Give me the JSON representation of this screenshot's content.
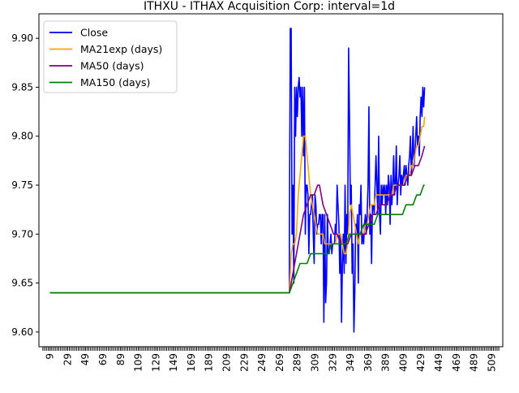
{
  "chart_data": {
    "type": "line",
    "title": "ITHXU - ITHAX Acquisition Corp: interval=1d",
    "xlabel": "",
    "ylabel": "",
    "xlim": [
      -3.5,
      521.5
    ],
    "ylim": [
      9.585,
      9.925
    ],
    "x_ticks": [
      9,
      29,
      49,
      69,
      89,
      109,
      129,
      149,
      169,
      189,
      209,
      229,
      249,
      269,
      289,
      309,
      329,
      349,
      369,
      389,
      409,
      429,
      449,
      469,
      489,
      509
    ],
    "y_ticks": [
      "9.60",
      "9.65",
      "9.70",
      "9.75",
      "9.80",
      "9.85",
      "9.90"
    ],
    "grid": false,
    "legend_position": "top-left",
    "series": [
      {
        "name": "Close",
        "color": "#0000ff",
        "points": [
          [
            9,
            9.64
          ],
          [
            280,
            9.64
          ],
          [
            280,
            9.7
          ],
          [
            281,
            9.91
          ],
          [
            282,
            9.91
          ],
          [
            283,
            9.7
          ],
          [
            284,
            9.75
          ],
          [
            285,
            9.65
          ],
          [
            286,
            9.85
          ],
          [
            287,
            9.8
          ],
          [
            288,
            9.85
          ],
          [
            289,
            9.82
          ],
          [
            290,
            9.85
          ],
          [
            291,
            9.86
          ],
          [
            292,
            9.84
          ],
          [
            293,
            9.85
          ],
          [
            294,
            9.8
          ],
          [
            295,
            9.85
          ],
          [
            296,
            9.78
          ],
          [
            297,
            9.85
          ],
          [
            298,
            9.7
          ],
          [
            299,
            9.75
          ],
          [
            300,
            9.75
          ],
          [
            301,
            9.74
          ],
          [
            302,
            9.68
          ],
          [
            303,
            9.72
          ],
          [
            304,
            9.72
          ],
          [
            305,
            9.73
          ],
          [
            306,
            9.74
          ],
          [
            307,
            9.7
          ],
          [
            308,
            9.67
          ],
          [
            309,
            9.74
          ],
          [
            310,
            9.73
          ],
          [
            311,
            9.7
          ],
          [
            312,
            9.71
          ],
          [
            313,
            9.71
          ],
          [
            314,
            9.72
          ],
          [
            315,
            9.72
          ],
          [
            316,
            9.69
          ],
          [
            317,
            9.72
          ],
          [
            318,
            9.72
          ],
          [
            319,
            9.61
          ],
          [
            320,
            9.72
          ],
          [
            321,
            9.63
          ],
          [
            322,
            9.65
          ],
          [
            323,
            9.72
          ],
          [
            324,
            9.68
          ],
          [
            325,
            9.68
          ],
          [
            326,
            9.69
          ],
          [
            327,
            9.7
          ],
          [
            328,
            9.68
          ],
          [
            329,
            9.69
          ],
          [
            330,
            9.69
          ],
          [
            331,
            9.69
          ],
          [
            332,
            9.71
          ],
          [
            333,
            9.7
          ],
          [
            334,
            9.75
          ],
          [
            335,
            9.73
          ],
          [
            336,
            9.71
          ],
          [
            337,
            9.66
          ],
          [
            338,
            9.7
          ],
          [
            339,
            9.61
          ],
          [
            340,
            9.67
          ],
          [
            341,
            9.7
          ],
          [
            342,
            9.66
          ],
          [
            343,
            9.75
          ],
          [
            344,
            9.67
          ],
          [
            345,
            9.72
          ],
          [
            346,
            9.7
          ],
          [
            347,
            9.89
          ],
          [
            348,
            9.82
          ],
          [
            349,
            9.73
          ],
          [
            350,
            9.75
          ],
          [
            351,
            9.66
          ],
          [
            352,
            9.69
          ],
          [
            353,
            9.6
          ],
          [
            354,
            9.64
          ],
          [
            355,
            9.71
          ],
          [
            356,
            9.7
          ],
          [
            357,
            9.72
          ],
          [
            358,
            9.65
          ],
          [
            359,
            9.73
          ],
          [
            360,
            9.72
          ],
          [
            361,
            9.75
          ],
          [
            362,
            9.69
          ],
          [
            363,
            9.7
          ],
          [
            364,
            9.69
          ],
          [
            365,
            9.71
          ],
          [
            366,
            9.72
          ],
          [
            367,
            9.7
          ],
          [
            368,
            9.72
          ],
          [
            369,
            9.75
          ],
          [
            370,
            9.83
          ],
          [
            371,
            9.7
          ],
          [
            372,
            9.72
          ],
          [
            373,
            9.67
          ],
          [
            374,
            9.73
          ],
          [
            375,
            9.73
          ],
          [
            376,
            9.72
          ],
          [
            377,
            9.75
          ],
          [
            378,
            9.78
          ],
          [
            379,
            9.75
          ],
          [
            380,
            9.72
          ],
          [
            381,
            9.8
          ],
          [
            382,
            9.72
          ],
          [
            383,
            9.7
          ],
          [
            384,
            9.75
          ],
          [
            385,
            9.73
          ],
          [
            386,
            9.75
          ],
          [
            387,
            9.74
          ],
          [
            388,
            9.75
          ],
          [
            389,
            9.72
          ],
          [
            390,
            9.75
          ],
          [
            391,
            9.73
          ],
          [
            392,
            9.76
          ],
          [
            393,
            9.75
          ],
          [
            394,
            9.71
          ],
          [
            395,
            9.76
          ],
          [
            396,
            9.73
          ],
          [
            397,
            9.75
          ],
          [
            398,
            9.78
          ],
          [
            399,
            9.74
          ],
          [
            400,
            9.75
          ],
          [
            401,
            9.79
          ],
          [
            402,
            9.73
          ],
          [
            403,
            9.75
          ],
          [
            404,
            9.76
          ],
          [
            405,
            9.78
          ],
          [
            406,
            9.74
          ],
          [
            407,
            9.76
          ],
          [
            408,
            9.75
          ],
          [
            409,
            9.76
          ],
          [
            410,
            9.77
          ],
          [
            411,
            9.75
          ],
          [
            412,
            9.77
          ],
          [
            413,
            9.76
          ],
          [
            414,
            9.75
          ],
          [
            415,
            9.77
          ],
          [
            416,
            9.78
          ],
          [
            417,
            9.8
          ],
          [
            418,
            9.76
          ],
          [
            419,
            9.78
          ],
          [
            420,
            9.81
          ],
          [
            421,
            9.77
          ],
          [
            422,
            9.78
          ],
          [
            423,
            9.8
          ],
          [
            424,
            9.82
          ],
          [
            425,
            9.79
          ],
          [
            426,
            9.8
          ],
          [
            427,
            9.78
          ],
          [
            428,
            9.82
          ],
          [
            429,
            9.84
          ],
          [
            430,
            9.82
          ],
          [
            431,
            9.85
          ],
          [
            432,
            9.83
          ],
          [
            433,
            9.85
          ]
        ]
      },
      {
        "name": "MA21exp (days)",
        "color": "#ffa500",
        "points": [
          [
            9,
            9.64
          ],
          [
            280,
            9.64
          ],
          [
            282,
            9.68
          ],
          [
            284,
            9.69
          ],
          [
            286,
            9.69
          ],
          [
            288,
            9.7
          ],
          [
            290,
            9.74
          ],
          [
            292,
            9.76
          ],
          [
            294,
            9.78
          ],
          [
            296,
            9.8
          ],
          [
            298,
            9.8
          ],
          [
            300,
            9.78
          ],
          [
            302,
            9.76
          ],
          [
            304,
            9.74
          ],
          [
            306,
            9.73
          ],
          [
            308,
            9.72
          ],
          [
            310,
            9.71
          ],
          [
            312,
            9.7
          ],
          [
            314,
            9.7
          ],
          [
            316,
            9.7
          ],
          [
            318,
            9.7
          ],
          [
            320,
            9.69
          ],
          [
            322,
            9.69
          ],
          [
            324,
            9.69
          ],
          [
            326,
            9.69
          ],
          [
            328,
            9.69
          ],
          [
            330,
            9.69
          ],
          [
            332,
            9.69
          ],
          [
            334,
            9.7
          ],
          [
            336,
            9.7
          ],
          [
            338,
            9.7
          ],
          [
            340,
            9.69
          ],
          [
            342,
            9.68
          ],
          [
            344,
            9.68
          ],
          [
            346,
            9.69
          ],
          [
            348,
            9.72
          ],
          [
            350,
            9.73
          ],
          [
            352,
            9.72
          ],
          [
            354,
            9.71
          ],
          [
            356,
            9.7
          ],
          [
            358,
            9.69
          ],
          [
            360,
            9.7
          ],
          [
            362,
            9.7
          ],
          [
            364,
            9.7
          ],
          [
            366,
            9.71
          ],
          [
            368,
            9.71
          ],
          [
            370,
            9.72
          ],
          [
            372,
            9.73
          ],
          [
            374,
            9.73
          ],
          [
            376,
            9.73
          ],
          [
            378,
            9.74
          ],
          [
            380,
            9.74
          ],
          [
            382,
            9.74
          ],
          [
            384,
            9.74
          ],
          [
            386,
            9.74
          ],
          [
            388,
            9.74
          ],
          [
            390,
            9.74
          ],
          [
            392,
            9.74
          ],
          [
            394,
            9.74
          ],
          [
            396,
            9.74
          ],
          [
            398,
            9.75
          ],
          [
            400,
            9.75
          ],
          [
            402,
            9.75
          ],
          [
            404,
            9.75
          ],
          [
            406,
            9.75
          ],
          [
            408,
            9.75
          ],
          [
            410,
            9.75
          ],
          [
            412,
            9.76
          ],
          [
            414,
            9.76
          ],
          [
            416,
            9.76
          ],
          [
            418,
            9.77
          ],
          [
            420,
            9.77
          ],
          [
            422,
            9.78
          ],
          [
            424,
            9.79
          ],
          [
            426,
            9.79
          ],
          [
            428,
            9.8
          ],
          [
            430,
            9.81
          ],
          [
            432,
            9.81
          ],
          [
            433,
            9.82
          ]
        ]
      },
      {
        "name": "MA50 (days)",
        "color": "#800080",
        "points": [
          [
            9,
            9.64
          ],
          [
            280,
            9.64
          ],
          [
            284,
            9.66
          ],
          [
            288,
            9.68
          ],
          [
            292,
            9.7
          ],
          [
            296,
            9.72
          ],
          [
            300,
            9.73
          ],
          [
            304,
            9.74
          ],
          [
            308,
            9.74
          ],
          [
            312,
            9.75
          ],
          [
            314,
            9.75
          ],
          [
            318,
            9.73
          ],
          [
            322,
            9.72
          ],
          [
            326,
            9.71
          ],
          [
            330,
            9.7
          ],
          [
            334,
            9.7
          ],
          [
            338,
            9.69
          ],
          [
            342,
            9.69
          ],
          [
            346,
            9.69
          ],
          [
            350,
            9.7
          ],
          [
            354,
            9.7
          ],
          [
            358,
            9.7
          ],
          [
            362,
            9.7
          ],
          [
            366,
            9.7
          ],
          [
            370,
            9.71
          ],
          [
            374,
            9.72
          ],
          [
            378,
            9.72
          ],
          [
            382,
            9.73
          ],
          [
            386,
            9.73
          ],
          [
            390,
            9.73
          ],
          [
            394,
            9.74
          ],
          [
            398,
            9.74
          ],
          [
            402,
            9.75
          ],
          [
            406,
            9.75
          ],
          [
            410,
            9.75
          ],
          [
            414,
            9.76
          ],
          [
            418,
            9.76
          ],
          [
            422,
            9.77
          ],
          [
            426,
            9.77
          ],
          [
            430,
            9.78
          ],
          [
            433,
            9.79
          ]
        ]
      },
      {
        "name": "MA150 (days)",
        "color": "#008000",
        "points": [
          [
            9,
            9.64
          ],
          [
            280,
            9.64
          ],
          [
            284,
            9.65
          ],
          [
            288,
            9.66
          ],
          [
            292,
            9.67
          ],
          [
            296,
            9.67
          ],
          [
            300,
            9.67
          ],
          [
            304,
            9.68
          ],
          [
            308,
            9.68
          ],
          [
            312,
            9.68
          ],
          [
            316,
            9.68
          ],
          [
            320,
            9.68
          ],
          [
            324,
            9.68
          ],
          [
            328,
            9.69
          ],
          [
            332,
            9.69
          ],
          [
            336,
            9.69
          ],
          [
            340,
            9.69
          ],
          [
            344,
            9.69
          ],
          [
            348,
            9.7
          ],
          [
            352,
            9.7
          ],
          [
            356,
            9.7
          ],
          [
            360,
            9.7
          ],
          [
            364,
            9.71
          ],
          [
            368,
            9.71
          ],
          [
            372,
            9.71
          ],
          [
            376,
            9.71
          ],
          [
            380,
            9.72
          ],
          [
            384,
            9.72
          ],
          [
            388,
            9.72
          ],
          [
            392,
            9.72
          ],
          [
            396,
            9.72
          ],
          [
            400,
            9.72
          ],
          [
            404,
            9.72
          ],
          [
            408,
            9.72
          ],
          [
            412,
            9.73
          ],
          [
            416,
            9.73
          ],
          [
            420,
            9.73
          ],
          [
            424,
            9.74
          ],
          [
            428,
            9.74
          ],
          [
            432,
            9.75
          ],
          [
            433,
            9.75
          ]
        ]
      }
    ]
  }
}
